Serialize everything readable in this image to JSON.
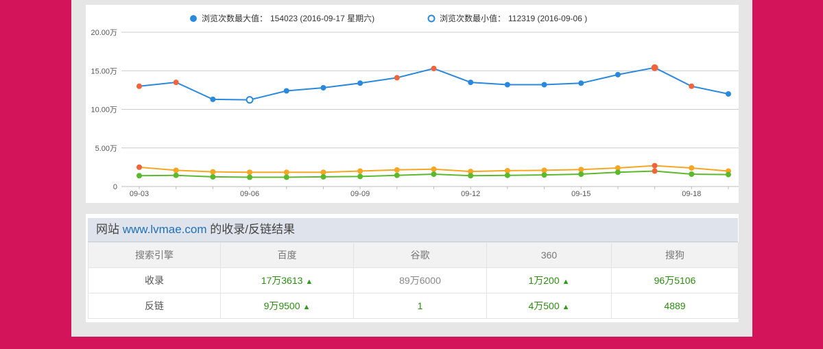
{
  "chart_data": {
    "type": "line",
    "legend": [
      {
        "label": "浏览次数最大值：",
        "value_text": "154023 (2016-09-17 星期六)",
        "marker": "filled"
      },
      {
        "label": "浏览次数最小值：",
        "value_text": "112319 (2016-09-06 )",
        "marker": "hollow"
      }
    ],
    "x": [
      "09-03",
      "09-04",
      "09-05",
      "09-06",
      "09-07",
      "09-08",
      "09-09",
      "09-10",
      "09-11",
      "09-12",
      "09-13",
      "09-14",
      "09-15",
      "09-16",
      "09-17",
      "09-18",
      "09-19"
    ],
    "x_tick_labels": [
      "09-03",
      "09-06",
      "09-09",
      "09-12",
      "09-15",
      "09-18"
    ],
    "y_tick_labels": [
      "0",
      "5.00万",
      "10.00万",
      "15.00万",
      "20.00万"
    ],
    "ylim": [
      0,
      200000
    ],
    "grid": true,
    "series": [
      {
        "color": "#2a89dc",
        "values": [
          130000,
          135000,
          113000,
          112319,
          124000,
          128000,
          134000,
          141000,
          153000,
          135000,
          132000,
          132000,
          134000,
          145000,
          154023,
          130000,
          120000
        ],
        "highlight_index": [
          0,
          1,
          7,
          8,
          14,
          15
        ],
        "highlight_color": "#f0643c"
      },
      {
        "color": "#f5a623",
        "values": [
          25000,
          21000,
          19000,
          18500,
          18500,
          18500,
          20000,
          21500,
          22500,
          19500,
          20500,
          21000,
          22000,
          24000,
          27000,
          24000,
          20000
        ]
      },
      {
        "color": "#5bb92e",
        "values": [
          14000,
          14500,
          12500,
          12000,
          12000,
          12500,
          13000,
          14500,
          16000,
          14000,
          14500,
          15000,
          16000,
          18500,
          20000,
          16000,
          15500
        ]
      }
    ]
  },
  "table": {
    "title_prefix": "网站 ",
    "site": "www.lvmae.com",
    "title_suffix": " 的收录/反链结果",
    "headers": [
      "搜索引擎",
      "百度",
      "谷歌",
      "360",
      "搜狗"
    ],
    "rows": [
      {
        "label": "收录",
        "baidu": "17万3613",
        "google": "89万6000",
        "s360": "1万200",
        "sogou": "96万5106"
      },
      {
        "label": "反链",
        "baidu": "9万9500",
        "google": "1",
        "s360": "4万500",
        "sogou": "4889"
      }
    ],
    "up_arrow": "🡑"
  },
  "colors": {
    "background": "#d4145a",
    "panel": "#e6e6e6",
    "line_blue": "#2a89dc",
    "line_orange": "#f5a623",
    "line_green": "#5bb92e",
    "point_highlight": "#f0643c"
  }
}
